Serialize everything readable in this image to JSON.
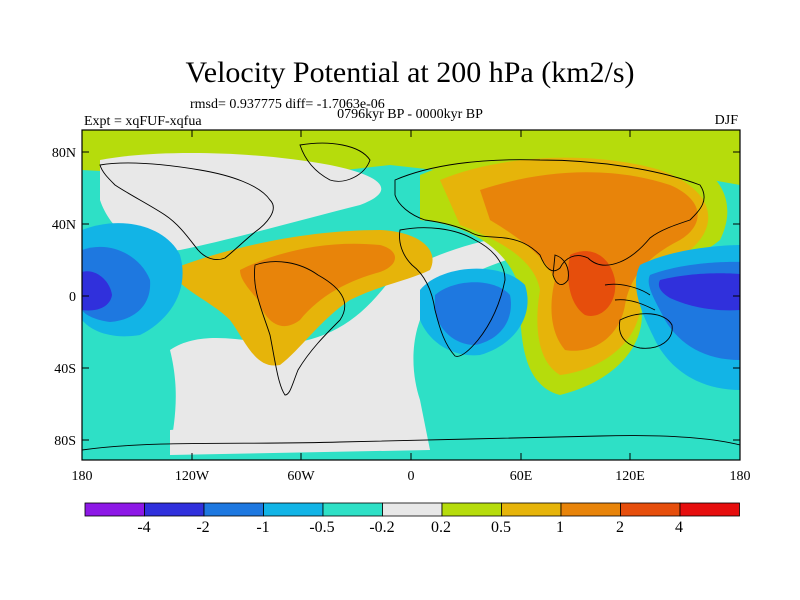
{
  "title": "Velocity Potential at 200 hPa (km2/s)",
  "stats": "rmsd= 0.937775 diff= -1.7063e-06",
  "experiment": "Expt = xqFUF-xqfua",
  "period": "0796kyr BP - 0000kyr BP",
  "season": "DJF",
  "lat_ticks": [
    "80N",
    "40N",
    "0",
    "40S",
    "80S"
  ],
  "lon_ticks": [
    "180",
    "120W",
    "60W",
    "0",
    "60E",
    "120E",
    "180"
  ],
  "colorbar": {
    "labels": [
      "-4",
      "-2",
      "-1",
      "-0.5",
      "-0.2",
      "0.2",
      "0.5",
      "1",
      "2",
      "4"
    ],
    "colors": [
      "#8d18e6",
      "#3030dc",
      "#1e78e0",
      "#12b4e6",
      "#2ee0c6",
      "#e8e8e8",
      "#b6dc0c",
      "#e6b40a",
      "#e8840a",
      "#e64e0c",
      "#e60e0e"
    ]
  },
  "map_colors": {
    "ocean_base": "#2ee0c6",
    "neutral": "#e8e8e8",
    "pos_low": "#b6dc0c",
    "pos_mid": "#e6b40a",
    "pos_high": "#e8840a",
    "pos_max": "#e64e0c",
    "neg_low": "#12b4e6",
    "neg_mid": "#1e78e0",
    "neg_max": "#3030dc"
  }
}
